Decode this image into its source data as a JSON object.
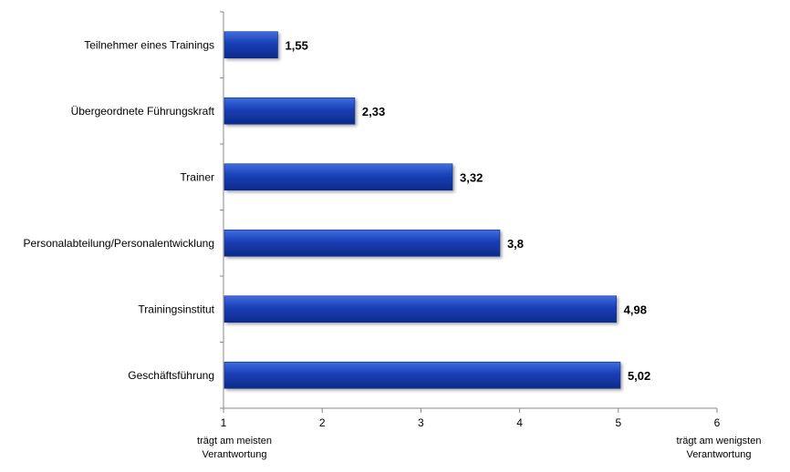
{
  "chart_data": {
    "type": "bar",
    "orientation": "horizontal",
    "categories": [
      "Teilnehmer eines Trainings",
      "Übergeordnete  Führungskraft",
      "Trainer",
      "Personalabteilung/Personalentwicklung",
      "Trainingsinstitut",
      "Geschäftsführung"
    ],
    "values": [
      1.55,
      2.33,
      3.32,
      3.8,
      4.98,
      5.02
    ],
    "value_labels": [
      "1,55",
      "2,33",
      "3,32",
      "3,8",
      "4,98",
      "5,02"
    ],
    "xlim": [
      1,
      6
    ],
    "xticks": [
      1,
      2,
      3,
      4,
      5,
      6
    ],
    "xtick_labels": [
      "1",
      "2",
      "3",
      "4",
      "5",
      "6"
    ],
    "x_min_note": [
      "trägt am meisten",
      "Verantwortung"
    ],
    "x_max_note": [
      "trägt am wenigsten",
      "Verantwortung"
    ],
    "grid": false,
    "bar_color": "#1a3fb5",
    "bar_color_light": "#3f6ee0",
    "bar_color_dark": "#0c2a8a"
  }
}
